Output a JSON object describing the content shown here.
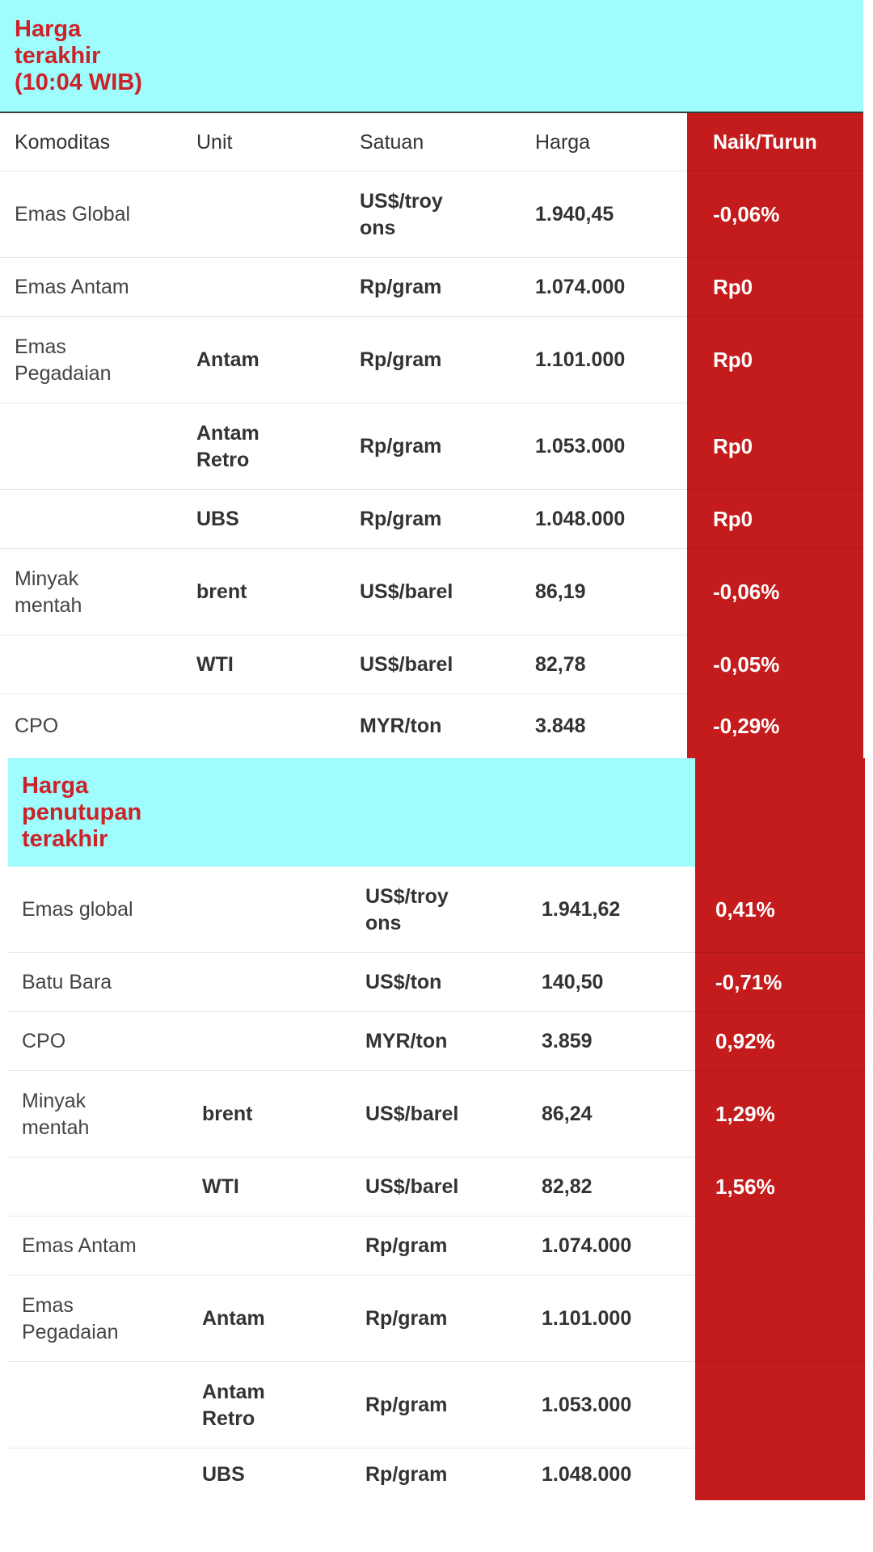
{
  "table1": {
    "title": "Harga\nterakhir\n(10:04 WIB)",
    "headers": {
      "komoditas": "Komoditas",
      "unit": "Unit",
      "satuan": "Satuan",
      "harga": "Harga",
      "naik_turun": "Naik/Turun"
    },
    "rows": [
      {
        "komoditas": "Emas Global",
        "unit": "",
        "satuan": "US$/troy\nons",
        "harga": "1.940,45",
        "perubahan": "-0,06%"
      },
      {
        "komoditas": "Emas Antam",
        "unit": "",
        "satuan": "Rp/gram",
        "harga": "1.074.000",
        "perubahan": "Rp0"
      },
      {
        "komoditas": "Emas\nPegadaian",
        "unit": "Antam",
        "satuan": "Rp/gram",
        "harga": "1.101.000",
        "perubahan": "Rp0"
      },
      {
        "komoditas": "",
        "unit": "Antam\nRetro",
        "satuan": "Rp/gram",
        "harga": "1.053.000",
        "perubahan": "Rp0"
      },
      {
        "komoditas": "",
        "unit": "UBS",
        "satuan": "Rp/gram",
        "harga": "1.048.000",
        "perubahan": "Rp0"
      },
      {
        "komoditas": "Minyak\nmentah",
        "unit": "brent",
        "satuan": "US$/barel",
        "harga": "86,19",
        "perubahan": "-0,06%"
      },
      {
        "komoditas": "",
        "unit": "WTI",
        "satuan": "US$/barel",
        "harga": "82,78",
        "perubahan": "-0,05%"
      },
      {
        "komoditas": "CPO",
        "unit": "",
        "satuan": "MYR/ton",
        "harga": "3.848",
        "perubahan": "-0,29%"
      }
    ]
  },
  "table2": {
    "title": "Harga\npenutupan\nterakhir",
    "rows": [
      {
        "komoditas": "Emas global",
        "unit": "",
        "satuan": "US$/troy\nons",
        "harga": "1.941,62",
        "perubahan": "0,41%"
      },
      {
        "komoditas": "Batu Bara",
        "unit": "",
        "satuan": "US$/ton",
        "harga": "140,50",
        "perubahan": "-0,71%"
      },
      {
        "komoditas": "CPO",
        "unit": "",
        "satuan": "MYR/ton",
        "harga": "3.859",
        "perubahan": "0,92%"
      },
      {
        "komoditas": "Minyak\nmentah",
        "unit": "brent",
        "satuan": "US$/barel",
        "harga": "86,24",
        "perubahan": "1,29%"
      },
      {
        "komoditas": "",
        "unit": "WTI",
        "satuan": "US$/barel",
        "harga": "82,82",
        "perubahan": "1,56%"
      },
      {
        "komoditas": "Emas Antam",
        "unit": "",
        "satuan": "Rp/gram",
        "harga": "1.074.000",
        "perubahan": ""
      },
      {
        "komoditas": "Emas\nPegadaian",
        "unit": "Antam",
        "satuan": "Rp/gram",
        "harga": "1.101.000",
        "perubahan": ""
      },
      {
        "komoditas": "",
        "unit": "Antam\nRetro",
        "satuan": "Rp/gram",
        "harga": "1.053.000",
        "perubahan": ""
      },
      {
        "komoditas": "",
        "unit": "UBS",
        "satuan": "Rp/gram",
        "harga": "1.048.000",
        "perubahan": ""
      }
    ]
  },
  "colors": {
    "title_band": "#9ffdfd",
    "title_text": "#cc2229",
    "change_column": "#c41c1c"
  }
}
